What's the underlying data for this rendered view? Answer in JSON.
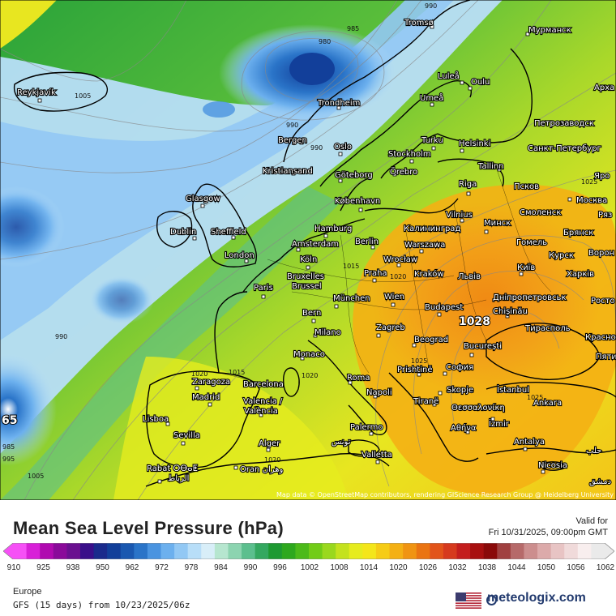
{
  "map": {
    "credit": "Map data © OpenStreetMap contributors, rendering GIScience Research Group @ Heidelberg University",
    "cities": [
      {
        "name": "Tromsø"
      },
      {
        "name": "Мурманск"
      },
      {
        "name": "Reykjavík"
      },
      {
        "name": "Luleå"
      },
      {
        "name": "Oulu"
      },
      {
        "name": "Арха"
      },
      {
        "name": "Umeå"
      },
      {
        "name": "Trondheim"
      },
      {
        "name": "Петрозаводск"
      },
      {
        "name": "Turku"
      },
      {
        "name": "Helsinki"
      },
      {
        "name": "Санкт-Петербург"
      },
      {
        "name": "Bergen"
      },
      {
        "name": "Oslo"
      },
      {
        "name": "Stockholm"
      },
      {
        "name": "Kristiansand"
      },
      {
        "name": "Göteborg"
      },
      {
        "name": "Örebro"
      },
      {
        "name": "Tallinn"
      },
      {
        "name": "Псков"
      },
      {
        "name": "Яро"
      },
      {
        "name": "Riga"
      },
      {
        "name": "Москва"
      },
      {
        "name": "Glasgow"
      },
      {
        "name": "København"
      },
      {
        "name": "Vilnius"
      },
      {
        "name": "Минск"
      },
      {
        "name": "Смоленск"
      },
      {
        "name": "Ряз"
      },
      {
        "name": "Dublin"
      },
      {
        "name": "Sheffield"
      },
      {
        "name": "Hamburg"
      },
      {
        "name": "Калининград"
      },
      {
        "name": "Брянск"
      },
      {
        "name": "Amsterdam"
      },
      {
        "name": "Berlin"
      },
      {
        "name": "Warszawa"
      },
      {
        "name": "Гомель"
      },
      {
        "name": "Курск"
      },
      {
        "name": "Ворон"
      },
      {
        "name": "London"
      },
      {
        "name": "Köln"
      },
      {
        "name": "Wrocław"
      },
      {
        "name": "Київ"
      },
      {
        "name": "Харків"
      },
      {
        "name": "Bruxelles"
      },
      {
        "name": "Brussel"
      },
      {
        "name": "Praha"
      },
      {
        "name": "Kraków"
      },
      {
        "name": "Львів"
      },
      {
        "name": "Paris"
      },
      {
        "name": "Дніпропетровськ"
      },
      {
        "name": "München"
      },
      {
        "name": "Wien"
      },
      {
        "name": "Chișinău"
      },
      {
        "name": "Росто"
      },
      {
        "name": "Budapest"
      },
      {
        "name": "Bern"
      },
      {
        "name": "Тирасполь"
      },
      {
        "name": "Milano"
      },
      {
        "name": "Zagreb"
      },
      {
        "name": "Красно"
      },
      {
        "name": "Beograd"
      },
      {
        "name": "Monaco"
      },
      {
        "name": "București"
      },
      {
        "name": "Пяти"
      },
      {
        "name": "Prishtinë"
      },
      {
        "name": "София"
      },
      {
        "name": "Zaragoza"
      },
      {
        "name": "Barcelona"
      },
      {
        "name": "Roma"
      },
      {
        "name": "Madrid"
      },
      {
        "name": "Skopje"
      },
      {
        "name": "İstanbul"
      },
      {
        "name": "Napoli"
      },
      {
        "name": "Tiranë"
      },
      {
        "name": "Valencia /"
      },
      {
        "name": "València"
      },
      {
        "name": "Θεσσαλονίκη"
      },
      {
        "name": "Ankara"
      },
      {
        "name": "Lisboa"
      },
      {
        "name": "İzmir"
      },
      {
        "name": "Palermo"
      },
      {
        "name": "Αθήνα"
      },
      {
        "name": "Sevilla"
      },
      {
        "name": "تونس"
      },
      {
        "name": "Antalya"
      },
      {
        "name": "Alger"
      },
      {
        "name": "حلب"
      },
      {
        "name": "Valletta"
      },
      {
        "name": "Rabat ⵔⴱⴰⵟ"
      },
      {
        "name": "الرباط"
      },
      {
        "name": "Oran وهران"
      },
      {
        "name": "Nicosia"
      },
      {
        "name": "دمشق"
      }
    ],
    "isobars": [
      "990",
      "985",
      "980",
      "1005",
      "990",
      "990",
      "990",
      "1015",
      "1020",
      "1015",
      "1020",
      "1025",
      "1025",
      "1025",
      "985",
      "995",
      "1005",
      "1020",
      "1020"
    ],
    "high_label": "1028",
    "low_label": "65"
  },
  "footer": {
    "title": "Mean Sea Level Pressure (hPa)",
    "valid_label": "Valid for",
    "valid_time": "Fri 10/31/2025, 09:00pm GMT",
    "region": "Europe",
    "model": "GFS (15 days) from 10/23/2025/06z",
    "brand": "meteologix.com",
    "scale_ticks": [
      "910",
      "925",
      "938",
      "950",
      "962",
      "972",
      "978",
      "984",
      "990",
      "996",
      "1002",
      "1008",
      "1014",
      "1020",
      "1026",
      "1032",
      "1038",
      "1044",
      "1050",
      "1056",
      "1062"
    ],
    "scale_colors": [
      "#f650f6",
      "#d820d8",
      "#b00ab0",
      "#8a0a9a",
      "#6a1090",
      "#3a0f8a",
      "#1a2a8c",
      "#123f9a",
      "#1a58b0",
      "#2a74c8",
      "#4a94e0",
      "#6cb0ee",
      "#92c8f4",
      "#b8def8",
      "#d8eef8",
      "#b6e6cf",
      "#8cd4b0",
      "#5cbf8e",
      "#34a860",
      "#1e9a32",
      "#2ea81e",
      "#4cba1a",
      "#72cc18",
      "#9ad81e",
      "#c4e21e",
      "#e6ec1e",
      "#f4e61a",
      "#f6cc16",
      "#f4b014",
      "#f09412",
      "#ea7412",
      "#e2541a",
      "#d63a1e",
      "#c41e1e",
      "#a81010",
      "#8a0a0a",
      "#a04040",
      "#b66a6a",
      "#cc8e8e",
      "#dcaaaa",
      "#e8c4c4",
      "#f0dada",
      "#f8eeee",
      "#eaeaea"
    ]
  }
}
